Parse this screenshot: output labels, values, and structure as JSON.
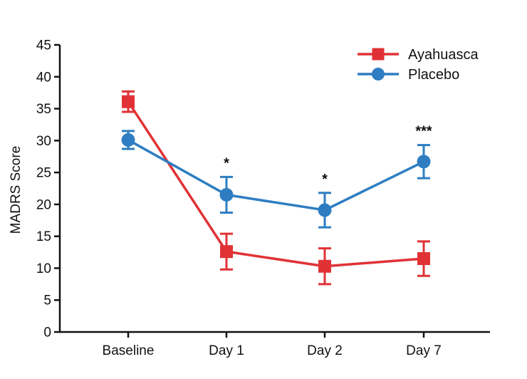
{
  "chart_data": {
    "type": "line",
    "title": "",
    "xlabel": "",
    "ylabel": "MADRS Score",
    "ylim": [
      0,
      45
    ],
    "yticks": [
      0,
      5,
      10,
      15,
      20,
      25,
      30,
      35,
      40,
      45
    ],
    "categories": [
      "Baseline",
      "Day 1",
      "Day 2",
      "Day 7"
    ],
    "series": [
      {
        "name": "Ayahuasca",
        "color": "#e03236",
        "marker": "square",
        "values": [
          36.1,
          12.6,
          10.3,
          11.5
        ],
        "error": [
          1.6,
          2.8,
          2.8,
          2.7
        ]
      },
      {
        "name": "Placebo",
        "color": "#2e7dc2",
        "marker": "circle",
        "values": [
          30.1,
          21.5,
          19.1,
          26.7
        ],
        "error": [
          1.4,
          2.8,
          2.7,
          2.6
        ]
      }
    ],
    "annotations": [
      "",
      "*",
      "*",
      "***"
    ],
    "legend_position": "top-right",
    "grid": false
  }
}
